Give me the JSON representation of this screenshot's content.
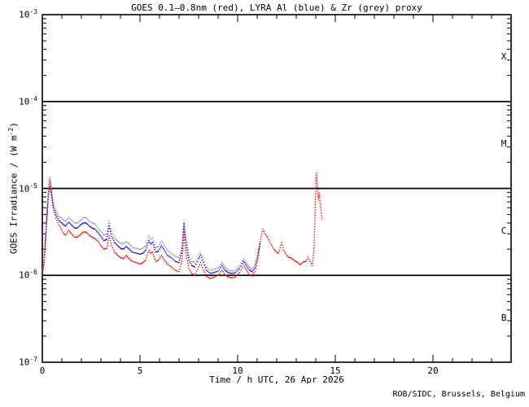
{
  "title": "GOES 0.1–0.8nm (red), LYRA Al (blue) & Zr (grey) proxy",
  "credit": "ROB/SIDC, Brussels, Belgium",
  "colors": {
    "goes_red": "#ff0000",
    "lyra_al_blue": "#0000ff",
    "lyra_zr_grey": "#9c9c9c",
    "axis": "#000000",
    "background": "#ffffff"
  },
  "axes": {
    "xlabel": "Time / h UTC, 26 Apr 2026",
    "ylabel": {
      "pre": "GOES Irradiance / (W m",
      "sup": "-2",
      "post": ")"
    },
    "x_ticks": [
      0,
      5,
      10,
      15,
      20
    ],
    "x_minor_step": 1,
    "y_tick_base": "10",
    "y_tick_exponents": [
      -3,
      -4,
      -5,
      -6,
      -7
    ]
  },
  "chart_data": {
    "type": "scatter",
    "title": "GOES 0.1–0.8nm (red), LYRA Al (blue) & Zr (grey) proxy",
    "xlabel": "Time / h UTC, 26 Apr 2026",
    "ylabel": "GOES Irradiance / (W m-2)",
    "x_range_hours": [
      0,
      24
    ],
    "ylim": [
      1e-07,
      0.001
    ],
    "yscale": "log",
    "grid": false,
    "flux_boundary_lines": [
      0.0001,
      1e-05,
      1e-06
    ],
    "flux_class_labels": [
      {
        "label": "X",
        "level": 0.000316
      },
      {
        "label": "M",
        "level": 3.16e-05
      },
      {
        "label": "C",
        "level": 3.16e-06
      },
      {
        "label": "B",
        "level": 3.16e-07
      }
    ],
    "series": [
      {
        "name": "LYRA Zr proxy",
        "color_key": "lyra_zr_grey",
        "points": [
          [
            0.0,
            1.15e-06
          ],
          [
            0.1,
            1.6e-06
          ],
          [
            0.2,
            4.2e-06
          ],
          [
            0.3,
            9.5e-06
          ],
          [
            0.38,
            1.35e-05
          ],
          [
            0.45,
            1.1e-05
          ],
          [
            0.55,
            7e-06
          ],
          [
            0.7,
            5.5e-06
          ],
          [
            0.85,
            4.8e-06
          ],
          [
            1.0,
            4.5e-06
          ],
          [
            1.1,
            4.3e-06
          ],
          [
            1.2,
            4.2e-06
          ],
          [
            1.35,
            4.6e-06
          ],
          [
            1.5,
            4.3e-06
          ],
          [
            1.65,
            4e-06
          ],
          [
            1.8,
            4e-06
          ],
          [
            1.95,
            4.3e-06
          ],
          [
            2.1,
            4.6e-06
          ],
          [
            2.25,
            4.6e-06
          ],
          [
            2.4,
            4.2e-06
          ],
          [
            2.55,
            4e-06
          ],
          [
            2.7,
            3.9e-06
          ],
          [
            2.85,
            3.5e-06
          ],
          [
            3.0,
            3.2e-06
          ],
          [
            3.15,
            2.9e-06
          ],
          [
            3.3,
            3e-06
          ],
          [
            3.42,
            4.2e-06
          ],
          [
            3.55,
            3.2e-06
          ],
          [
            3.7,
            2.7e-06
          ],
          [
            3.85,
            2.5e-06
          ],
          [
            4.0,
            2.35e-06
          ],
          [
            4.15,
            2.3e-06
          ],
          [
            4.3,
            2.45e-06
          ],
          [
            4.45,
            2.3e-06
          ],
          [
            4.6,
            2.1e-06
          ],
          [
            4.8,
            2.05e-06
          ],
          [
            5.0,
            2e-06
          ],
          [
            5.15,
            2.05e-06
          ],
          [
            5.3,
            2.2e-06
          ],
          [
            5.45,
            2.9e-06
          ],
          [
            5.55,
            2.6e-06
          ],
          [
            5.65,
            2.7e-06
          ],
          [
            5.8,
            2.1e-06
          ],
          [
            5.95,
            2.15e-06
          ],
          [
            6.1,
            2.5e-06
          ],
          [
            6.25,
            2.2e-06
          ],
          [
            6.4,
            1.95e-06
          ],
          [
            6.6,
            1.8e-06
          ],
          [
            6.8,
            1.65e-06
          ],
          [
            7.0,
            1.6e-06
          ],
          [
            7.15,
            2.1e-06
          ],
          [
            7.25,
            4.3e-06
          ],
          [
            7.35,
            2.7e-06
          ],
          [
            7.5,
            1.7e-06
          ],
          [
            7.65,
            1.45e-06
          ],
          [
            7.8,
            1.4e-06
          ],
          [
            8.0,
            1.7e-06
          ],
          [
            8.1,
            1.85e-06
          ],
          [
            8.25,
            1.55e-06
          ],
          [
            8.4,
            1.25e-06
          ],
          [
            8.6,
            1.15e-06
          ],
          [
            8.8,
            1.18e-06
          ],
          [
            9.0,
            1.22e-06
          ],
          [
            9.2,
            1.4e-06
          ],
          [
            9.35,
            1.25e-06
          ],
          [
            9.5,
            1.15e-06
          ],
          [
            9.7,
            1.12e-06
          ],
          [
            9.9,
            1.15e-06
          ],
          [
            10.1,
            1.3e-06
          ],
          [
            10.3,
            1.55e-06
          ],
          [
            10.45,
            1.4e-06
          ],
          [
            10.6,
            1.25e-06
          ],
          [
            10.75,
            1.18e-06
          ],
          [
            10.9,
            1.35e-06
          ],
          [
            11.05,
            1.9e-06
          ],
          [
            11.15,
            2.4e-06
          ]
        ]
      },
      {
        "name": "LYRA Al proxy",
        "color_key": "lyra_al_blue",
        "points": [
          [
            0.0,
            1.1e-06
          ],
          [
            0.1,
            1.5e-06
          ],
          [
            0.2,
            3.6e-06
          ],
          [
            0.3,
            7.5e-06
          ],
          [
            0.38,
            1.05e-05
          ],
          [
            0.45,
            9e-06
          ],
          [
            0.55,
            6.3e-06
          ],
          [
            0.7,
            5e-06
          ],
          [
            0.85,
            4.3e-06
          ],
          [
            1.0,
            4e-06
          ],
          [
            1.1,
            3.8e-06
          ],
          [
            1.2,
            3.7e-06
          ],
          [
            1.35,
            4.1e-06
          ],
          [
            1.5,
            3.8e-06
          ],
          [
            1.65,
            3.5e-06
          ],
          [
            1.8,
            3.5e-06
          ],
          [
            1.95,
            3.8e-06
          ],
          [
            2.1,
            4e-06
          ],
          [
            2.25,
            4e-06
          ],
          [
            2.4,
            3.7e-06
          ],
          [
            2.55,
            3.5e-06
          ],
          [
            2.7,
            3.4e-06
          ],
          [
            2.85,
            3.1e-06
          ],
          [
            3.0,
            2.8e-06
          ],
          [
            3.15,
            2.5e-06
          ],
          [
            3.3,
            2.6e-06
          ],
          [
            3.42,
            3.7e-06
          ],
          [
            3.55,
            2.8e-06
          ],
          [
            3.7,
            2.4e-06
          ],
          [
            3.85,
            2.2e-06
          ],
          [
            4.0,
            2.05e-06
          ],
          [
            4.15,
            2e-06
          ],
          [
            4.3,
            2.15e-06
          ],
          [
            4.45,
            2e-06
          ],
          [
            4.6,
            1.85e-06
          ],
          [
            4.8,
            1.8e-06
          ],
          [
            5.0,
            1.75e-06
          ],
          [
            5.15,
            1.8e-06
          ],
          [
            5.3,
            1.95e-06
          ],
          [
            5.45,
            2.5e-06
          ],
          [
            5.55,
            2.3e-06
          ],
          [
            5.65,
            2.4e-06
          ],
          [
            5.8,
            1.85e-06
          ],
          [
            5.95,
            1.9e-06
          ],
          [
            6.1,
            2.2e-06
          ],
          [
            6.25,
            1.95e-06
          ],
          [
            6.4,
            1.7e-06
          ],
          [
            6.6,
            1.6e-06
          ],
          [
            6.8,
            1.45e-06
          ],
          [
            7.0,
            1.4e-06
          ],
          [
            7.15,
            1.9e-06
          ],
          [
            7.25,
            3.9e-06
          ],
          [
            7.35,
            2.4e-06
          ],
          [
            7.5,
            1.5e-06
          ],
          [
            7.65,
            1.3e-06
          ],
          [
            7.8,
            1.25e-06
          ],
          [
            8.0,
            1.55e-06
          ],
          [
            8.1,
            1.7e-06
          ],
          [
            8.25,
            1.4e-06
          ],
          [
            8.4,
            1.15e-06
          ],
          [
            8.6,
            1.05e-06
          ],
          [
            8.8,
            1.08e-06
          ],
          [
            9.0,
            1.12e-06
          ],
          [
            9.2,
            1.3e-06
          ],
          [
            9.35,
            1.15e-06
          ],
          [
            9.5,
            1.08e-06
          ],
          [
            9.7,
            1.05e-06
          ],
          [
            9.9,
            1.08e-06
          ],
          [
            10.1,
            1.2e-06
          ],
          [
            10.3,
            1.45e-06
          ],
          [
            10.45,
            1.3e-06
          ],
          [
            10.6,
            1.15e-06
          ],
          [
            10.75,
            1.1e-06
          ],
          [
            10.9,
            1.25e-06
          ],
          [
            11.05,
            1.8e-06
          ],
          [
            11.15,
            2.3e-06
          ]
        ]
      },
      {
        "name": "GOES 0.1-0.8nm",
        "color_key": "goes_red",
        "points": [
          [
            0.0,
            1e-06
          ],
          [
            0.1,
            1.4e-06
          ],
          [
            0.2,
            3.4e-06
          ],
          [
            0.3,
            8e-06
          ],
          [
            0.38,
            1.28e-05
          ],
          [
            0.45,
            1e-05
          ],
          [
            0.55,
            6e-06
          ],
          [
            0.7,
            4.6e-06
          ],
          [
            0.85,
            3.8e-06
          ],
          [
            1.0,
            3.3e-06
          ],
          [
            1.1,
            3e-06
          ],
          [
            1.2,
            2.9e-06
          ],
          [
            1.35,
            3.3e-06
          ],
          [
            1.5,
            3e-06
          ],
          [
            1.65,
            2.75e-06
          ],
          [
            1.8,
            2.75e-06
          ],
          [
            1.95,
            2.95e-06
          ],
          [
            2.1,
            3.15e-06
          ],
          [
            2.25,
            3.15e-06
          ],
          [
            2.4,
            2.9e-06
          ],
          [
            2.55,
            2.75e-06
          ],
          [
            2.7,
            2.65e-06
          ],
          [
            2.85,
            2.45e-06
          ],
          [
            3.0,
            2.2e-06
          ],
          [
            3.15,
            2e-06
          ],
          [
            3.3,
            2.05e-06
          ],
          [
            3.42,
            2.85e-06
          ],
          [
            3.55,
            2.2e-06
          ],
          [
            3.7,
            1.85e-06
          ],
          [
            3.85,
            1.7e-06
          ],
          [
            4.0,
            1.6e-06
          ],
          [
            4.15,
            1.55e-06
          ],
          [
            4.3,
            1.7e-06
          ],
          [
            4.45,
            1.55e-06
          ],
          [
            4.6,
            1.45e-06
          ],
          [
            4.8,
            1.4e-06
          ],
          [
            5.0,
            1.35e-06
          ],
          [
            5.15,
            1.4e-06
          ],
          [
            5.3,
            1.5e-06
          ],
          [
            5.45,
            1.95e-06
          ],
          [
            5.55,
            1.8e-06
          ],
          [
            5.65,
            1.85e-06
          ],
          [
            5.8,
            1.45e-06
          ],
          [
            5.95,
            1.5e-06
          ],
          [
            6.1,
            1.7e-06
          ],
          [
            6.25,
            1.5e-06
          ],
          [
            6.4,
            1.35e-06
          ],
          [
            6.6,
            1.25e-06
          ],
          [
            6.8,
            1.15e-06
          ],
          [
            7.0,
            1.1e-06
          ],
          [
            7.15,
            1.45e-06
          ],
          [
            7.25,
            3.1e-06
          ],
          [
            7.35,
            1.8e-06
          ],
          [
            7.5,
            1.2e-06
          ],
          [
            7.65,
            1.05e-06
          ],
          [
            7.8,
            1e-06
          ],
          [
            8.0,
            1.25e-06
          ],
          [
            8.1,
            1.4e-06
          ],
          [
            8.25,
            1.15e-06
          ],
          [
            8.4,
            9.7e-07
          ],
          [
            8.6,
            9.2e-07
          ],
          [
            8.8,
            9.5e-07
          ],
          [
            9.0,
            1e-06
          ],
          [
            9.2,
            1.15e-06
          ],
          [
            9.35,
            1.02e-06
          ],
          [
            9.5,
            9.6e-07
          ],
          [
            9.7,
            9.3e-07
          ],
          [
            9.9,
            9.6e-07
          ],
          [
            10.1,
            1.08e-06
          ],
          [
            10.3,
            1.3e-06
          ],
          [
            10.45,
            1.15e-06
          ],
          [
            10.6,
            1.02e-06
          ],
          [
            10.75,
            9.8e-07
          ],
          [
            10.9,
            1.12e-06
          ],
          [
            11.05,
            1.6e-06
          ],
          [
            11.2,
            2.8e-06
          ],
          [
            11.3,
            3.4e-06
          ],
          [
            11.4,
            3e-06
          ],
          [
            11.55,
            2.7e-06
          ],
          [
            11.7,
            2.3e-06
          ],
          [
            11.85,
            2e-06
          ],
          [
            12.0,
            1.85e-06
          ],
          [
            12.1,
            1.8e-06
          ],
          [
            12.25,
            2.4e-06
          ],
          [
            12.35,
            1.95e-06
          ],
          [
            12.5,
            1.7e-06
          ],
          [
            12.6,
            1.62e-06
          ],
          [
            12.75,
            1.58e-06
          ],
          [
            12.9,
            1.48e-06
          ],
          [
            13.05,
            1.42e-06
          ],
          [
            13.2,
            1.32e-06
          ],
          [
            13.35,
            1.42e-06
          ],
          [
            13.5,
            1.45e-06
          ],
          [
            13.6,
            1.62e-06
          ],
          [
            13.72,
            1.45e-06
          ],
          [
            13.82,
            1.3e-06
          ],
          [
            13.92,
            2.2e-06
          ],
          [
            13.98,
            7e-06
          ],
          [
            14.02,
            1.5e-05
          ],
          [
            14.08,
            1.1e-05
          ],
          [
            14.13,
            7.5e-06
          ],
          [
            14.18,
            8.8e-06
          ],
          [
            14.25,
            6e-06
          ],
          [
            14.32,
            4.5e-06
          ]
        ]
      }
    ]
  }
}
